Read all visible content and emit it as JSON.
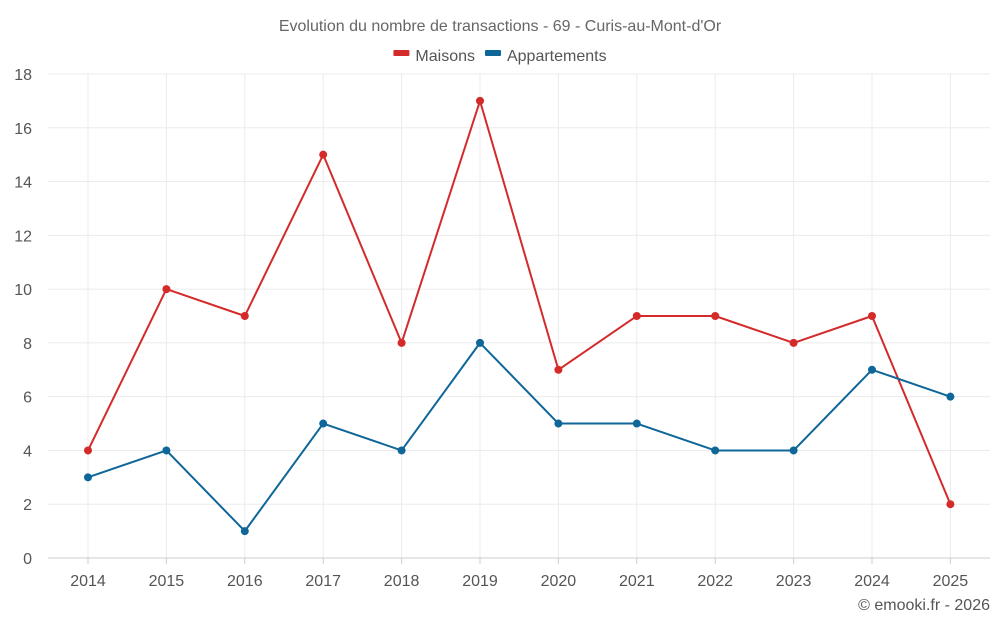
{
  "chart_data": {
    "type": "line",
    "title": "Evolution du nombre de transactions - 69 - Curis-au-Mont-d'Or",
    "categories": [
      "2014",
      "2015",
      "2016",
      "2017",
      "2018",
      "2019",
      "2020",
      "2021",
      "2022",
      "2023",
      "2024",
      "2025"
    ],
    "series": [
      {
        "name": "Maisons",
        "color": "#d42a2a",
        "values": [
          4,
          10,
          9,
          15,
          8,
          17,
          7,
          9,
          9,
          8,
          9,
          2
        ]
      },
      {
        "name": "Appartements",
        "color": "#0e6699",
        "values": [
          3,
          4,
          1,
          5,
          4,
          8,
          5,
          5,
          4,
          4,
          7,
          6
        ]
      }
    ],
    "ylim": [
      0,
      18
    ],
    "yticks": [
      0,
      2,
      4,
      6,
      8,
      10,
      12,
      14,
      16,
      18
    ],
    "xlabel": "",
    "ylabel": "",
    "grid": true,
    "legend": "top-center"
  },
  "credit": "© emooki.fr - 2026"
}
